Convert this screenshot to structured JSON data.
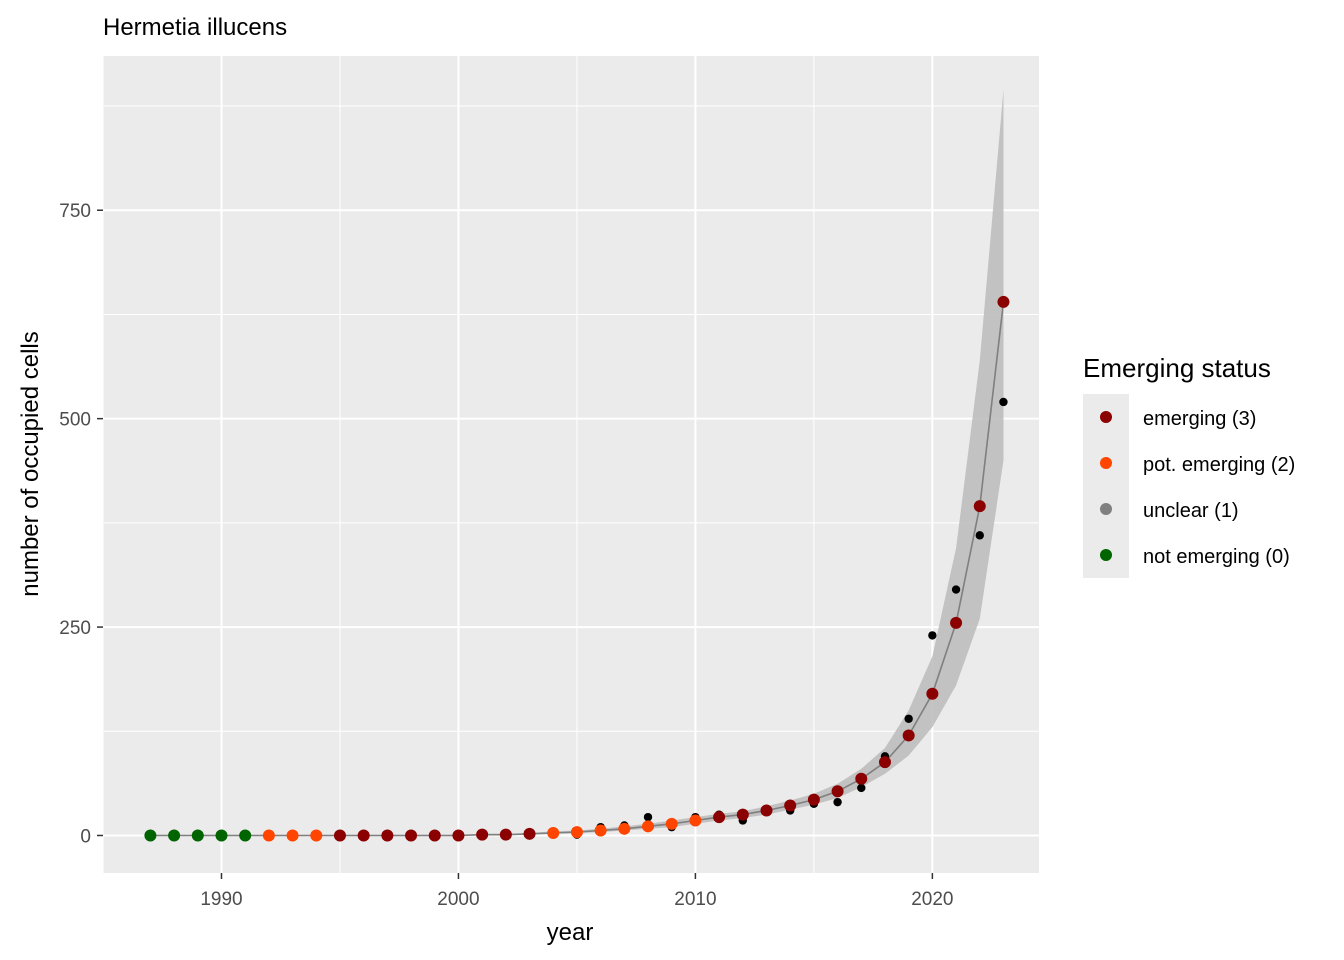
{
  "chart_data": {
    "type": "scatter",
    "title": "Hermetia illucens",
    "xlabel": "year",
    "ylabel": "number of occupied cells",
    "xlim": [
      1985,
      2024.5
    ],
    "ylim": [
      -45,
      935
    ],
    "x_ticks": [
      1990,
      2000,
      2010,
      2020
    ],
    "x_tick_labels": [
      "1990",
      "2000",
      "2010",
      "2020"
    ],
    "y_ticks": [
      0,
      250,
      500,
      750
    ],
    "y_tick_labels": [
      "0",
      "250",
      "500",
      "750"
    ],
    "grid": true,
    "legend": {
      "title": "Emerging status",
      "position": "right",
      "entries": [
        {
          "label": "emerging (3)",
          "color": "#8B0000"
        },
        {
          "label": "pot. emerging (2)",
          "color": "#FF4500"
        },
        {
          "label": "unclear (1)",
          "color": "#808080"
        },
        {
          "label": "not emerging (0)",
          "color": "#006400"
        }
      ]
    },
    "observed": {
      "name": "observed",
      "color": "#000000",
      "x": [
        2005,
        2006,
        2007,
        2008,
        2009,
        2010,
        2011,
        2012,
        2013,
        2014,
        2015,
        2016,
        2017,
        2018,
        2019,
        2020,
        2021,
        2022,
        2023
      ],
      "y": [
        1,
        10,
        12,
        22,
        10,
        22,
        25,
        18,
        30,
        30,
        38,
        40,
        57,
        95,
        140,
        240,
        295,
        360,
        520
      ]
    },
    "fitted": {
      "name": "fitted",
      "x": [
        1987,
        1988,
        1989,
        1990,
        1991,
        1992,
        1993,
        1994,
        1995,
        1996,
        1997,
        1998,
        1999,
        2000,
        2001,
        2002,
        2003,
        2004,
        2005,
        2006,
        2007,
        2008,
        2009,
        2010,
        2011,
        2012,
        2013,
        2014,
        2015,
        2016,
        2017,
        2018,
        2019,
        2020,
        2021,
        2022,
        2023
      ],
      "y": [
        0,
        0,
        0,
        0,
        0,
        0,
        0,
        0,
        0,
        0,
        0,
        0,
        0,
        0,
        1,
        1,
        2,
        3,
        4,
        6,
        8,
        11,
        14,
        18,
        22,
        25,
        30,
        36,
        43,
        53,
        68,
        88,
        120,
        170,
        255,
        395,
        640
      ],
      "status": [
        0,
        0,
        0,
        0,
        0,
        2,
        2,
        2,
        3,
        3,
        3,
        3,
        3,
        3,
        3,
        3,
        3,
        2,
        2,
        2,
        2,
        2,
        2,
        2,
        3,
        3,
        3,
        3,
        3,
        3,
        3,
        3,
        3,
        3,
        3,
        3,
        3
      ],
      "ci_lower": [
        0,
        0,
        0,
        0,
        0,
        0,
        0,
        0,
        0,
        0,
        0,
        0,
        0,
        0,
        0,
        0,
        1,
        2,
        3,
        4,
        6,
        8,
        10,
        14,
        18,
        21,
        25,
        31,
        37,
        45,
        58,
        74,
        96,
        130,
        180,
        260,
        450
      ],
      "ci_upper": [
        1,
        1,
        1,
        1,
        1,
        1,
        1,
        1,
        1,
        1,
        1,
        1,
        1,
        1,
        2,
        2,
        3,
        5,
        6,
        8,
        11,
        14,
        18,
        22,
        26,
        29,
        35,
        42,
        50,
        62,
        80,
        105,
        150,
        215,
        345,
        570,
        895
      ]
    }
  }
}
